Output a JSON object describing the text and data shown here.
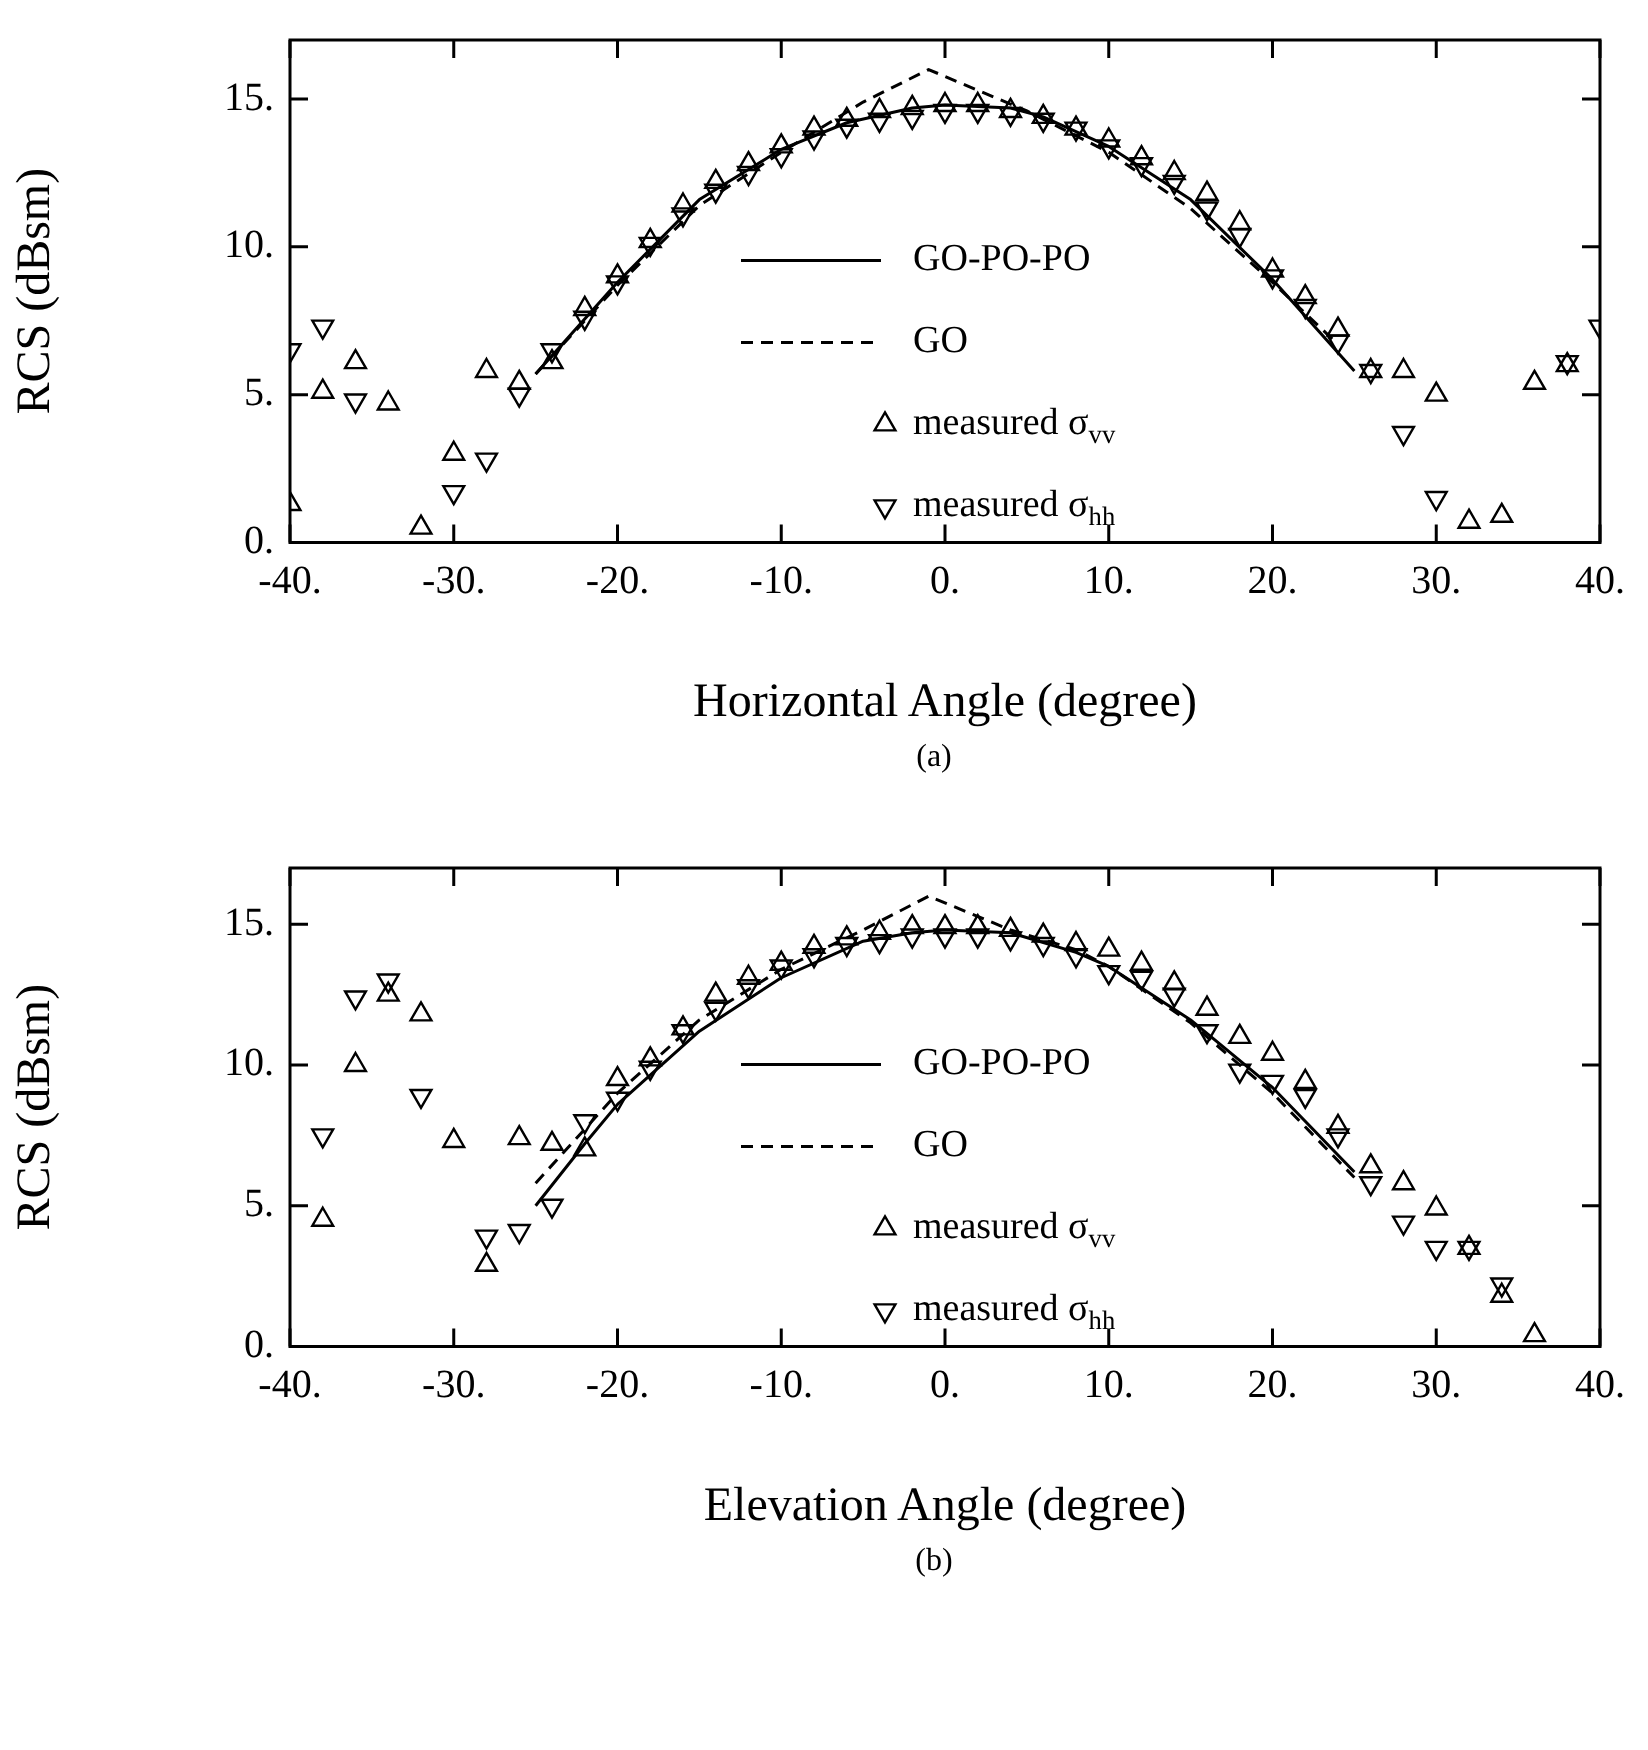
{
  "chart_data": [
    {
      "type": "scatter",
      "xlabel": "Horizontal Angle (degree)",
      "ylabel": "RCS (dBsm)",
      "annotations": [
        "(a)"
      ],
      "xlim": [
        -40,
        40
      ],
      "ylim": [
        0,
        17
      ],
      "xticks": [
        {
          "value": -40,
          "label": "-40."
        },
        {
          "value": -30,
          "label": "-30."
        },
        {
          "value": -20,
          "label": "-20."
        },
        {
          "value": -10,
          "label": "-10."
        },
        {
          "value": 0,
          "label": "0."
        },
        {
          "value": 10,
          "label": "10."
        },
        {
          "value": 20,
          "label": "20."
        },
        {
          "value": 30,
          "label": "30."
        },
        {
          "value": 40,
          "label": "40."
        }
      ],
      "yticks": [
        {
          "value": 0,
          "label": "0."
        },
        {
          "value": 5,
          "label": "5."
        },
        {
          "value": 10,
          "label": "10."
        },
        {
          "value": 15,
          "label": "15."
        }
      ],
      "grid": false,
      "legend": "bottom",
      "series": [
        {
          "name": "GO-PO-PO",
          "type": "line",
          "color": "#000000",
          "line_style": "solid",
          "marker": "none",
          "x": [
            -25,
            -20,
            -15,
            -10,
            -6,
            -2,
            0,
            4,
            6,
            10,
            15,
            20,
            25
          ],
          "values": [
            5.7,
            8.8,
            11.6,
            13.3,
            14.2,
            14.7,
            14.8,
            14.7,
            14.4,
            13.4,
            11.6,
            8.9,
            5.8
          ]
        },
        {
          "name": "GO",
          "type": "line",
          "color": "#000000",
          "line_style": "dashed",
          "marker": "none",
          "x": [
            -25,
            -20,
            -15,
            -10,
            -5,
            -1,
            5,
            10,
            15,
            20,
            24
          ],
          "values": [
            5.7,
            8.7,
            11.4,
            13.2,
            14.9,
            16.0,
            14.6,
            13.2,
            11.3,
            8.8,
            6.7
          ]
        },
        {
          "name": "measured σ$_{vv}$",
          "type": "scatter",
          "color": "#000000",
          "marker": "triangle",
          "x": [
            -40,
            -38,
            -36,
            -34,
            -32,
            -30,
            -28,
            -26,
            -24,
            -22,
            -20,
            -18,
            -16,
            -14,
            -12,
            -10,
            -8,
            -6,
            -4,
            -2,
            0,
            2,
            4,
            6,
            8,
            10,
            12,
            14,
            16,
            18,
            20,
            22,
            24,
            26,
            28,
            30,
            32,
            34,
            36,
            38
          ],
          "values": [
            1.3,
            5.1,
            6.1,
            4.7,
            0.5,
            3.0,
            5.8,
            5.4,
            6.1,
            7.9,
            9.0,
            10.2,
            11.4,
            12.2,
            12.8,
            13.4,
            14.0,
            14.3,
            14.6,
            14.7,
            14.8,
            14.8,
            14.6,
            14.4,
            14.0,
            13.6,
            13.0,
            12.5,
            11.8,
            10.8,
            9.2,
            8.3,
            7.2,
            5.8,
            5.8,
            5.0,
            0.7,
            0.9,
            5.4,
            6.0
          ]
        },
        {
          "name": "measured σ$_{hh}$",
          "type": "scatter",
          "color": "#000000",
          "marker": "triangle-down",
          "x": [
            -40,
            -38,
            -36,
            -30,
            -28,
            -26,
            -24,
            -22,
            -20,
            -18,
            -16,
            -14,
            -12,
            -10,
            -8,
            -6,
            -4,
            -2,
            0,
            2,
            4,
            6,
            8,
            10,
            12,
            14,
            16,
            18,
            20,
            22,
            24,
            26,
            28,
            30,
            38,
            40
          ],
          "values": [
            6.5,
            7.3,
            4.8,
            1.7,
            2.8,
            5.0,
            6.5,
            7.6,
            8.8,
            10.1,
            11.1,
            11.9,
            12.5,
            13.1,
            13.7,
            14.1,
            14.3,
            14.4,
            14.6,
            14.6,
            14.5,
            14.3,
            14.0,
            13.4,
            12.8,
            12.2,
            11.3,
            10.4,
            9.0,
            8.0,
            6.8,
            5.8,
            3.7,
            1.5,
            6.1,
            7.3
          ]
        }
      ]
    },
    {
      "type": "scatter",
      "xlabel": "Elevation Angle (degree)",
      "ylabel": "RCS (dBsm)",
      "annotations": [
        "(b)"
      ],
      "xlim": [
        -40,
        40
      ],
      "ylim": [
        0,
        17
      ],
      "xticks": [
        {
          "value": -40,
          "label": "-40."
        },
        {
          "value": -30,
          "label": "-30."
        },
        {
          "value": -20,
          "label": "-20."
        },
        {
          "value": -10,
          "label": "-10."
        },
        {
          "value": 0,
          "label": "0."
        },
        {
          "value": 10,
          "label": "10."
        },
        {
          "value": 20,
          "label": "20."
        },
        {
          "value": 30,
          "label": "30."
        },
        {
          "value": 40,
          "label": "40."
        }
      ],
      "yticks": [
        {
          "value": 0,
          "label": "0."
        },
        {
          "value": 5,
          "label": "5."
        },
        {
          "value": 10,
          "label": "10."
        },
        {
          "value": 15,
          "label": "15."
        }
      ],
      "grid": false,
      "legend": "bottom",
      "series": [
        {
          "name": "GO-PO-PO",
          "type": "line",
          "color": "#000000",
          "line_style": "solid",
          "marker": "none",
          "x": [
            -25,
            -22,
            -20,
            -15,
            -10,
            -5,
            -2,
            0,
            4,
            8,
            10,
            15,
            20,
            25
          ],
          "values": [
            5.0,
            7.2,
            8.6,
            11.2,
            13.1,
            14.4,
            14.7,
            14.8,
            14.7,
            14.0,
            13.5,
            11.6,
            9.2,
            6.2
          ]
        },
        {
          "name": "GO",
          "type": "line",
          "color": "#000000",
          "line_style": "dashed",
          "marker": "none",
          "x": [
            -25,
            -20,
            -15,
            -10,
            -5,
            -1,
            4,
            8,
            10,
            15,
            20,
            25
          ],
          "values": [
            5.8,
            9.0,
            11.6,
            13.4,
            14.8,
            16.0,
            14.8,
            14.1,
            13.5,
            11.5,
            9.0,
            6.0
          ]
        },
        {
          "name": "measured σ$_{vv}$",
          "type": "scatter",
          "color": "#000000",
          "marker": "triangle",
          "x": [
            -38,
            -36,
            -34,
            -32,
            -30,
            -28,
            -26,
            -24,
            -22,
            -20,
            -18,
            -16,
            -14,
            -12,
            -10,
            -8,
            -6,
            -4,
            -2,
            0,
            2,
            4,
            6,
            8,
            10,
            12,
            14,
            16,
            18,
            20,
            22,
            24,
            26,
            28,
            30,
            32,
            34,
            36
          ],
          "values": [
            4.5,
            10.0,
            12.5,
            11.8,
            7.3,
            2.9,
            7.4,
            7.2,
            7.0,
            9.5,
            10.2,
            11.3,
            12.5,
            13.1,
            13.6,
            14.2,
            14.5,
            14.7,
            14.9,
            14.9,
            14.9,
            14.8,
            14.6,
            14.3,
            14.1,
            13.6,
            12.9,
            12.0,
            11.0,
            10.4,
            9.4,
            7.8,
            6.4,
            5.8,
            4.9,
            3.5,
            1.8,
            0.4
          ]
        },
        {
          "name": "measured σ$_{hh}$",
          "type": "scatter",
          "color": "#000000",
          "marker": "triangle-down",
          "x": [
            -38,
            -36,
            -34,
            -32,
            -28,
            -26,
            -24,
            -22,
            -20,
            -18,
            -16,
            -14,
            -12,
            -10,
            -8,
            -6,
            -4,
            -2,
            0,
            2,
            4,
            6,
            8,
            10,
            12,
            14,
            16,
            18,
            20,
            22,
            24,
            26,
            28,
            30,
            32,
            34
          ],
          "values": [
            7.5,
            12.4,
            13.0,
            8.9,
            3.9,
            4.1,
            5.0,
            8.0,
            8.8,
            9.9,
            11.2,
            12.0,
            12.8,
            13.5,
            13.9,
            14.3,
            14.4,
            14.6,
            14.6,
            14.6,
            14.5,
            14.3,
            13.9,
            13.3,
            13.1,
            12.5,
            11.2,
            9.8,
            9.4,
            8.9,
            7.5,
            5.8,
            4.4,
            3.5,
            3.5,
            2.2
          ]
        }
      ]
    }
  ]
}
